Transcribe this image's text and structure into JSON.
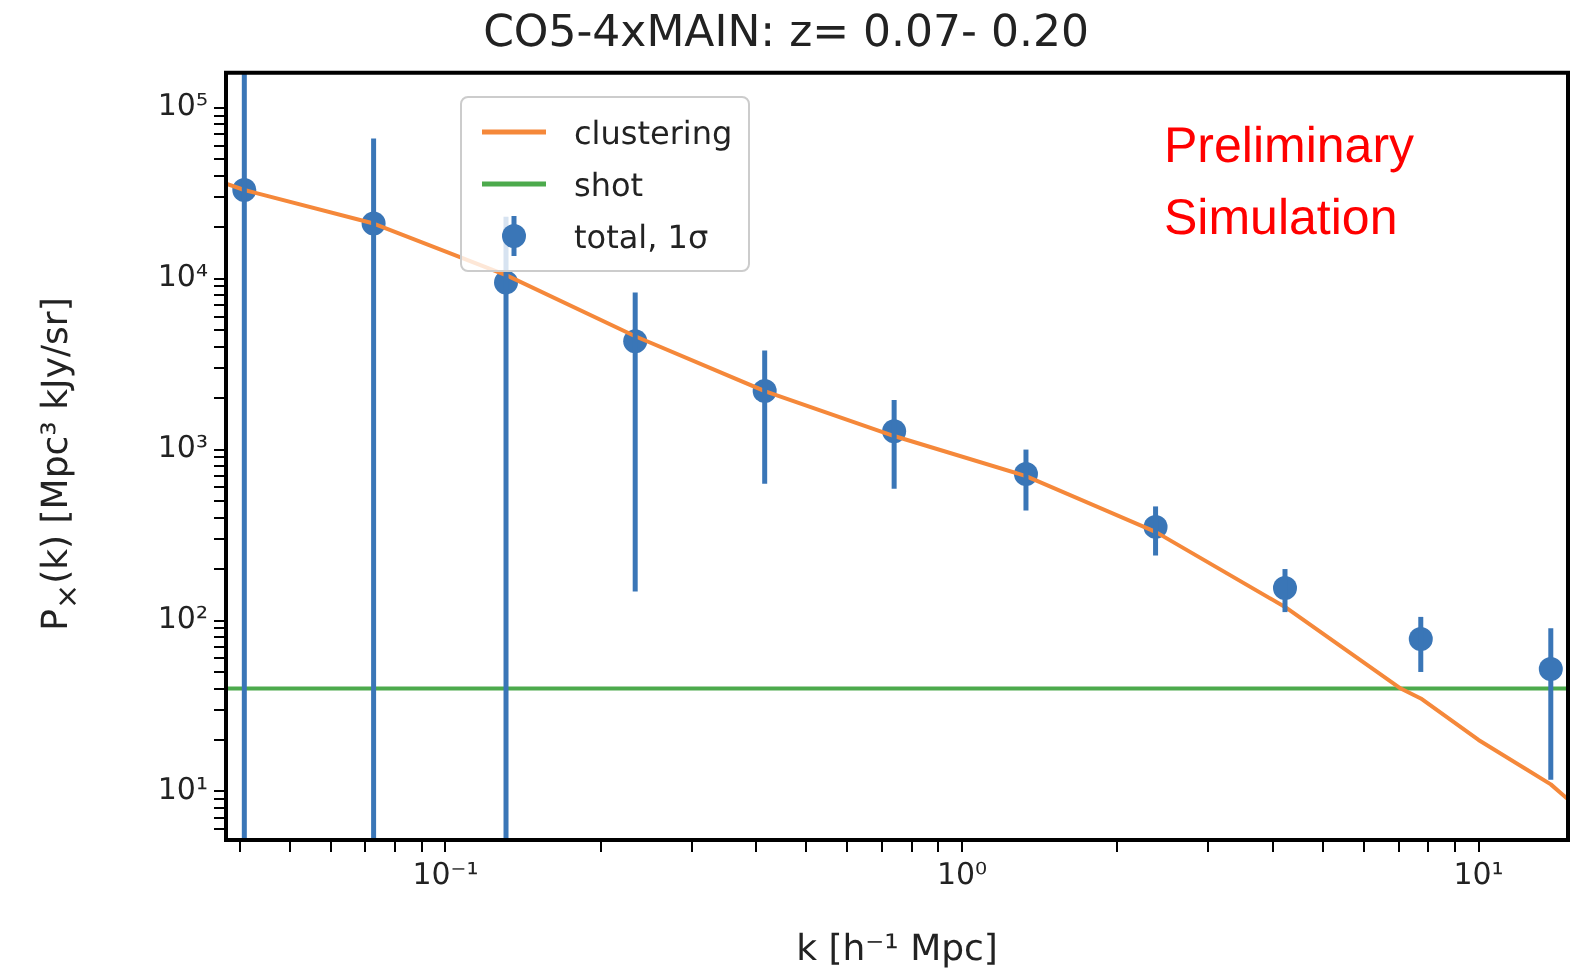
{
  "chart_data": {
    "type": "scatter",
    "title": "CO5-4xMAIN: z= 0.07- 0.20",
    "xlabel": "k [h⁻¹ Mpc]",
    "ylabel": "P$_{×}$(k) [Mpc³ kJy/sr]",
    "annotations": [
      "Preliminary\nSimulation"
    ],
    "log": "xy",
    "grid": false,
    "legend": "top left",
    "marker": "circle",
    "xlim": [
      0.0376,
      14.9
    ],
    "xticks": [
      {
        "value": 0.04,
        "label": null
      },
      {
        "value": 0.05,
        "label": null
      },
      {
        "value": 0.06,
        "label": null
      },
      {
        "value": 0.07,
        "label": null
      },
      {
        "value": 0.08,
        "label": null
      },
      {
        "value": 0.09,
        "label": null
      },
      {
        "value": 0.1,
        "label": "10⁻¹"
      },
      {
        "value": 0.2,
        "label": null
      },
      {
        "value": 0.3,
        "label": null
      },
      {
        "value": 0.4,
        "label": null
      },
      {
        "value": 0.5,
        "label": null
      },
      {
        "value": 0.6,
        "label": null
      },
      {
        "value": 0.7,
        "label": null
      },
      {
        "value": 0.8,
        "label": null
      },
      {
        "value": 0.9,
        "label": null
      },
      {
        "value": 1,
        "label": "10⁰"
      },
      {
        "value": 2,
        "label": null
      },
      {
        "value": 3,
        "label": null
      },
      {
        "value": 4,
        "label": null
      },
      {
        "value": 5,
        "label": null
      },
      {
        "value": 6,
        "label": null
      },
      {
        "value": 7,
        "label": null
      },
      {
        "value": 8,
        "label": null
      },
      {
        "value": 9,
        "label": null
      },
      {
        "value": 10,
        "label": "10¹"
      }
    ],
    "ylim": [
      5.2,
      160000
    ],
    "yticks": [
      {
        "value": 6,
        "label": null
      },
      {
        "value": 7,
        "label": null
      },
      {
        "value": 8,
        "label": null
      },
      {
        "value": 9,
        "label": null
      },
      {
        "value": 10,
        "label": "10¹"
      },
      {
        "value": 20,
        "label": null
      },
      {
        "value": 30,
        "label": null
      },
      {
        "value": 40,
        "label": null
      },
      {
        "value": 50,
        "label": null
      },
      {
        "value": 60,
        "label": null
      },
      {
        "value": 70,
        "label": null
      },
      {
        "value": 80,
        "label": null
      },
      {
        "value": 90,
        "label": null
      },
      {
        "value": 100,
        "label": "10²"
      },
      {
        "value": 200,
        "label": null
      },
      {
        "value": 300,
        "label": null
      },
      {
        "value": 400,
        "label": null
      },
      {
        "value": 500,
        "label": null
      },
      {
        "value": 600,
        "label": null
      },
      {
        "value": 700,
        "label": null
      },
      {
        "value": 800,
        "label": null
      },
      {
        "value": 900,
        "label": null
      },
      {
        "value": 1000,
        "label": "10³"
      },
      {
        "value": 2000,
        "label": null
      },
      {
        "value": 3000,
        "label": null
      },
      {
        "value": 4000,
        "label": null
      },
      {
        "value": 5000,
        "label": null
      },
      {
        "value": 6000,
        "label": null
      },
      {
        "value": 7000,
        "label": null
      },
      {
        "value": 8000,
        "label": null
      },
      {
        "value": 9000,
        "label": null
      },
      {
        "value": 10000,
        "label": "10⁴"
      },
      {
        "value": 20000,
        "label": null
      },
      {
        "value": 30000,
        "label": null
      },
      {
        "value": 40000,
        "label": null
      },
      {
        "value": 50000,
        "label": null
      },
      {
        "value": 60000,
        "label": null
      },
      {
        "value": 70000,
        "label": null
      },
      {
        "value": 80000,
        "label": null
      },
      {
        "value": 90000,
        "label": null
      },
      {
        "value": 100000,
        "label": "10⁵"
      }
    ],
    "series": [
      {
        "name": "clustering",
        "type": "line",
        "color": "#f5883a",
        "marker": "none",
        "x": [
          0.0376,
          0.0408,
          0.0726,
          0.131,
          0.233,
          0.415,
          0.739,
          1.33,
          2.37,
          4.22,
          7.07,
          7.73,
          10,
          13.8,
          14.9
        ],
        "values": [
          36000,
          33000,
          21000,
          10500,
          4600,
          2200,
          1200,
          700,
          330,
          120,
          40,
          35,
          20,
          11,
          9
        ]
      },
      {
        "name": "shot",
        "type": "line",
        "color": "#4caa4c",
        "marker": "none",
        "x": [
          0.0376,
          14.9
        ],
        "values": [
          40,
          40
        ]
      },
      {
        "name": "total, 1σ",
        "color": "#3a76b7",
        "x": [
          0.0408,
          0.0726,
          0.131,
          0.233,
          0.415,
          0.739,
          1.33,
          2.37,
          4.22,
          7.73,
          13.8
        ],
        "values": [
          33000,
          21000,
          9500,
          4300,
          2200,
          1280,
          720,
          353,
          155,
          78,
          52
        ],
        "errors": [
          [
            5.2,
            160000
          ],
          [
            5.2,
            66000
          ],
          [
            5.2,
            23000
          ],
          [
            148,
            8300
          ],
          [
            630,
            3800
          ],
          [
            590,
            1950
          ],
          [
            440,
            1000
          ],
          [
            240,
            465
          ],
          [
            112,
            200
          ],
          [
            50,
            105
          ],
          [
            11.7,
            90
          ]
        ]
      }
    ]
  }
}
